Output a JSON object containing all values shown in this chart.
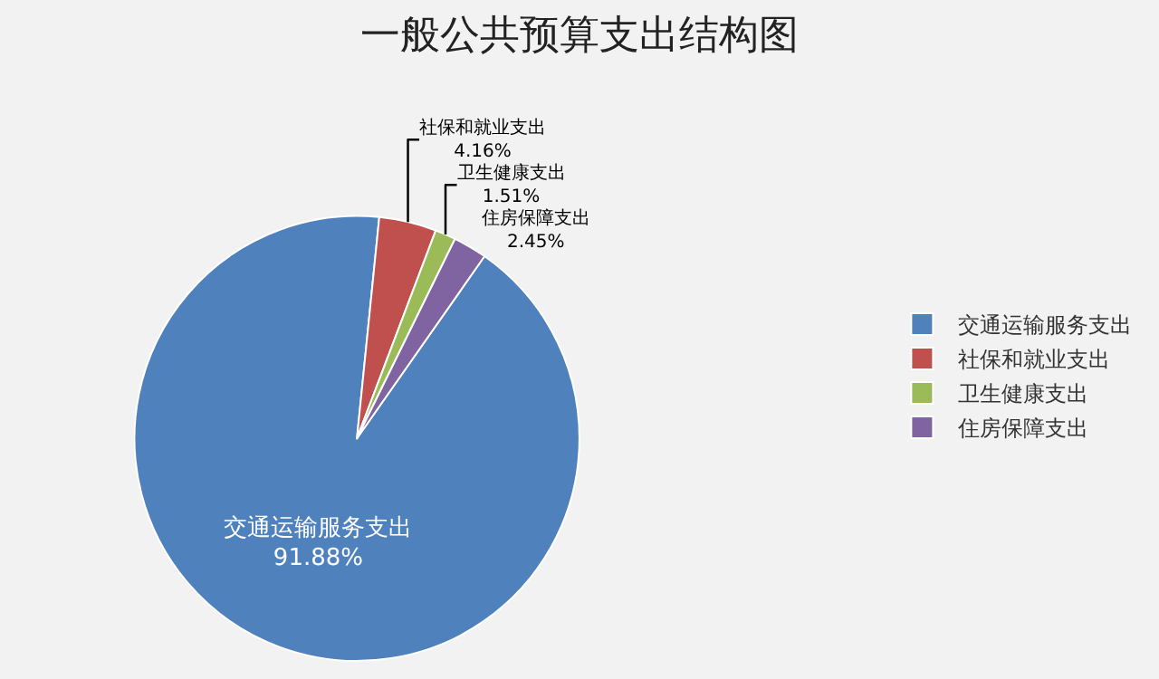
{
  "chart_data": {
    "type": "pie",
    "title": "一般公共预算支出结构图",
    "categories": [
      "交通运输服务支出",
      "社保和就业支出",
      "卫生健康支出",
      "住房保障支出"
    ],
    "values": [
      91.88,
      4.16,
      1.51,
      2.45
    ],
    "value_labels": [
      "91.88%",
      "4.16%",
      "1.51%",
      "2.45%"
    ],
    "colors": [
      "#4f81bd",
      "#c0504d",
      "#9bbb59",
      "#8064a2"
    ],
    "legend": "right"
  }
}
